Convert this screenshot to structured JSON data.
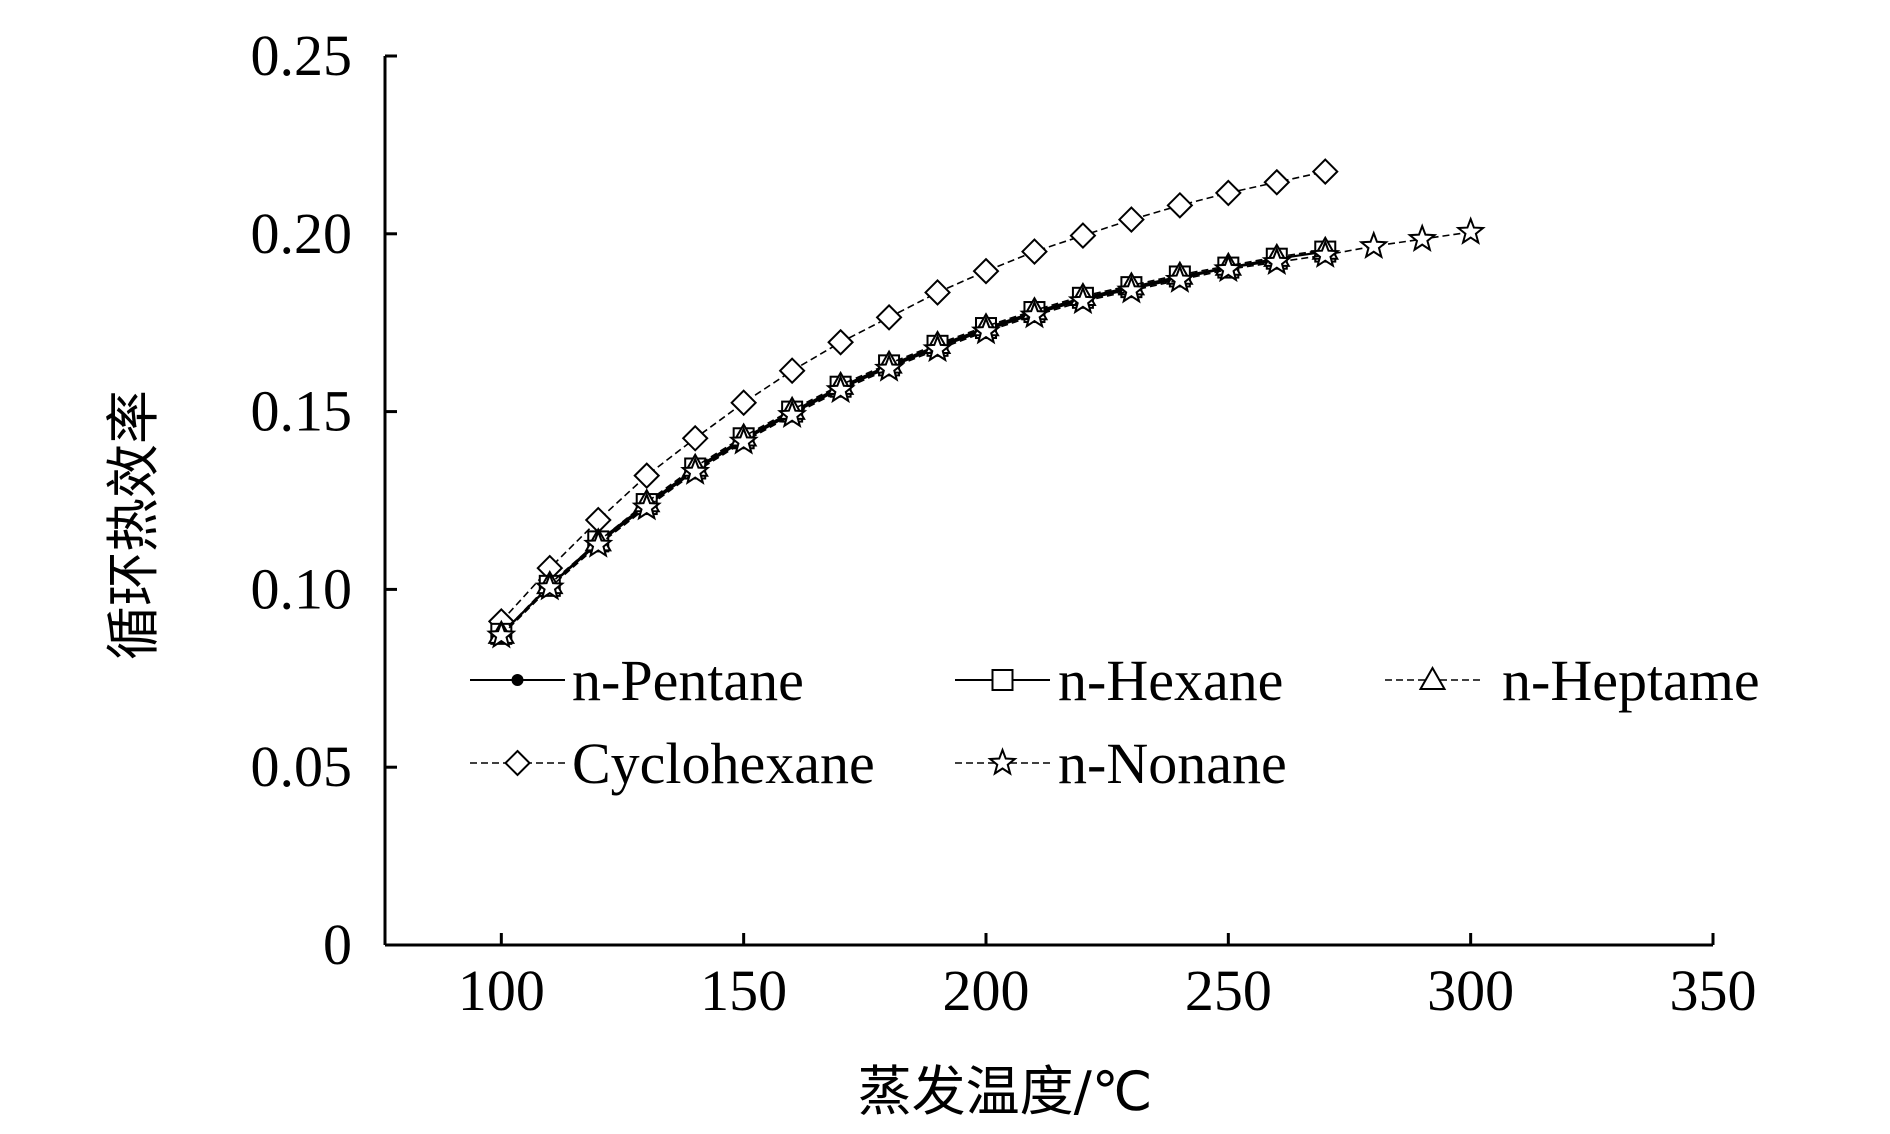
{
  "chart_data": {
    "type": "line",
    "title": "",
    "xlabel": "蒸发温度/℃",
    "ylabel": "循环热效率",
    "xlim": [
      76,
      350
    ],
    "ylim": [
      0,
      0.25
    ],
    "x_ticks": [
      "100",
      "150",
      "200",
      "250",
      "300",
      "350"
    ],
    "y_ticks": [
      "0",
      "0.05",
      "0.10",
      "0.15",
      "0.20",
      "0.25"
    ],
    "grid": false,
    "legend_position": "center",
    "series": [
      {
        "name": "n-Pentane",
        "marker": "dot",
        "line": "solid",
        "color": "#000000",
        "x": [
          100,
          110,
          120,
          130,
          140,
          150,
          160,
          170,
          180,
          190,
          200,
          210,
          220,
          230,
          240,
          250,
          260
        ],
        "y": [
          0.0875,
          0.101,
          0.113,
          0.1235,
          0.1335,
          0.142,
          0.1495,
          0.1565,
          0.1625,
          0.168,
          0.173,
          0.1775,
          0.1815,
          0.1845,
          0.1875,
          0.1905,
          0.1925
        ]
      },
      {
        "name": "n-Hexane",
        "marker": "square",
        "line": "solid",
        "color": "#000000",
        "x": [
          100,
          110,
          120,
          130,
          140,
          150,
          160,
          170,
          180,
          190,
          200,
          210,
          220,
          230,
          240,
          250,
          260,
          270
        ],
        "y": [
          0.0875,
          0.101,
          0.1135,
          0.124,
          0.134,
          0.1425,
          0.15,
          0.157,
          0.163,
          0.1685,
          0.1735,
          0.178,
          0.182,
          0.185,
          0.188,
          0.1905,
          0.193,
          0.195
        ]
      },
      {
        "name": "n-Heptame",
        "marker": "triangle",
        "line": "dashed",
        "color": "#000000",
        "x": [
          100,
          110,
          120,
          130,
          140,
          150,
          160,
          170,
          180,
          190,
          200,
          210,
          220,
          230,
          240,
          250,
          260,
          270
        ],
        "y": [
          0.0875,
          0.1015,
          0.1135,
          0.1245,
          0.1345,
          0.143,
          0.1505,
          0.1575,
          0.1635,
          0.169,
          0.174,
          0.1785,
          0.1825,
          0.1855,
          0.1885,
          0.191,
          0.1935,
          0.1955
        ]
      },
      {
        "name": "Cyclohexane",
        "marker": "diamond",
        "line": "dashed",
        "color": "#000000",
        "x": [
          100,
          110,
          120,
          130,
          140,
          150,
          160,
          170,
          180,
          190,
          200,
          210,
          220,
          230,
          240,
          250,
          260,
          270
        ],
        "y": [
          0.091,
          0.106,
          0.1195,
          0.132,
          0.1425,
          0.1525,
          0.1615,
          0.1695,
          0.1765,
          0.1835,
          0.1895,
          0.195,
          0.1995,
          0.204,
          0.208,
          0.2115,
          0.2145,
          0.2175
        ]
      },
      {
        "name": "n-Nonane",
        "marker": "star",
        "line": "dashed",
        "color": "#000000",
        "x": [
          100,
          110,
          120,
          130,
          140,
          150,
          160,
          170,
          180,
          190,
          200,
          210,
          220,
          230,
          240,
          250,
          260,
          270,
          280,
          290,
          300
        ],
        "y": [
          0.087,
          0.1005,
          0.1125,
          0.123,
          0.133,
          0.1415,
          0.149,
          0.156,
          0.162,
          0.1675,
          0.1725,
          0.177,
          0.181,
          0.184,
          0.187,
          0.19,
          0.192,
          0.194,
          0.1965,
          0.1985,
          0.2005
        ]
      }
    ]
  }
}
